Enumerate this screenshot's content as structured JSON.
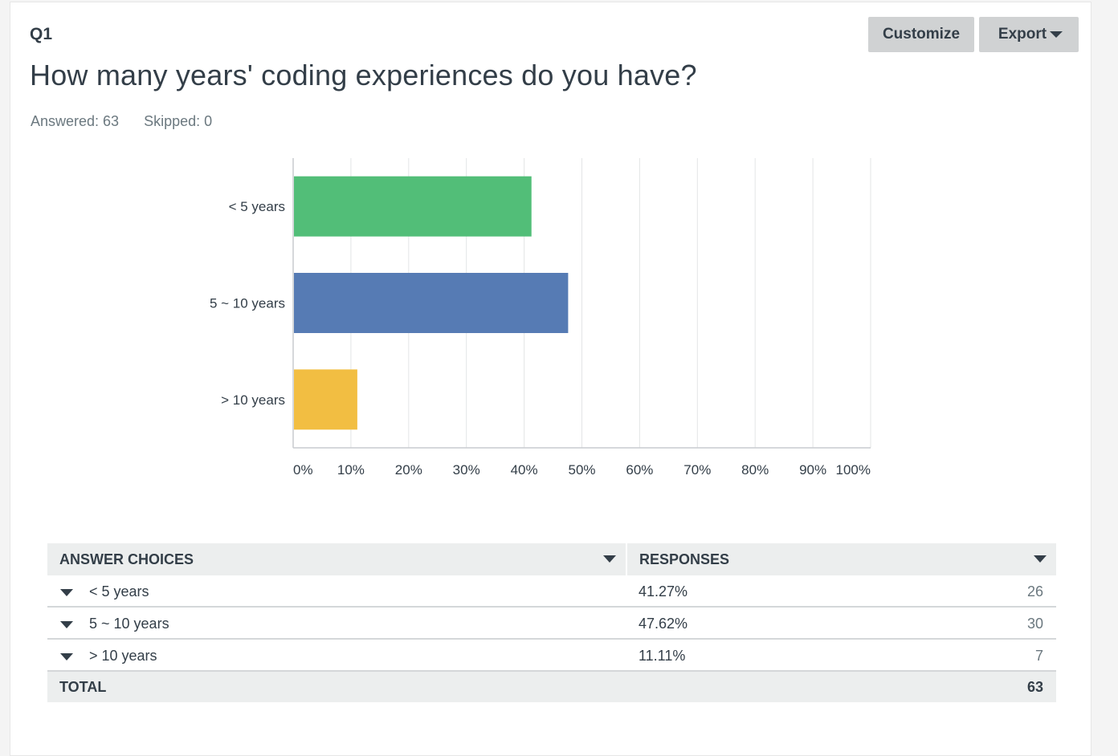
{
  "question": {
    "number": "Q1",
    "title": "How many years' coding experiences do you have?",
    "answered": "Answered: 63",
    "skipped": "Skipped: 0"
  },
  "toolbar": {
    "customize_label": "Customize",
    "export_label": "Export"
  },
  "chart_data": {
    "type": "bar",
    "orientation": "horizontal",
    "categories": [
      "< 5 years",
      "5 ~ 10 years",
      "> 10 years"
    ],
    "values": [
      41.27,
      47.62,
      11.11
    ],
    "colors": [
      "#52be78",
      "#567bb4",
      "#f2be42"
    ],
    "xlim": [
      0,
      100
    ],
    "x_ticks": [
      "0%",
      "10%",
      "20%",
      "30%",
      "40%",
      "50%",
      "60%",
      "70%",
      "80%",
      "90%",
      "100%"
    ],
    "grid": true
  },
  "table": {
    "headers": {
      "choices": "ANSWER CHOICES",
      "responses": "RESPONSES"
    },
    "rows": [
      {
        "choice": "< 5 years",
        "percent": "41.27%",
        "count": "26"
      },
      {
        "choice": "5 ~ 10 years",
        "percent": "47.62%",
        "count": "30"
      },
      {
        "choice": "> 10 years",
        "percent": "11.11%",
        "count": "7"
      }
    ],
    "total_label": "TOTAL",
    "total_count": "63"
  }
}
